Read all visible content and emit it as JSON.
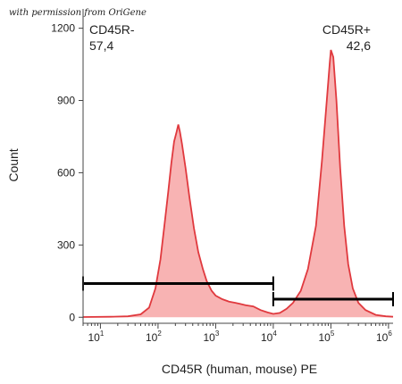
{
  "watermark": "with permission from OriGene",
  "chart_data": {
    "type": "area",
    "xlabel": "CD45R (human, mouse) PE",
    "ylabel": "Count",
    "x_scale": "log",
    "xlim": [
      5,
      1200000
    ],
    "ylim": [
      -25,
      1280
    ],
    "y_ticks": [
      0,
      300,
      600,
      900,
      1200
    ],
    "y_tick_labels": [
      "0",
      "300",
      "600",
      "900",
      "1200"
    ],
    "x_ticks": [
      {
        "value": 10,
        "base": "10",
        "exp": "1"
      },
      {
        "value": 100,
        "base": "10",
        "exp": "2"
      },
      {
        "value": 1000,
        "base": "10",
        "exp": "3"
      },
      {
        "value": 10000,
        "base": "10",
        "exp": "4"
      },
      {
        "value": 100000,
        "base": "10",
        "exp": "5"
      },
      {
        "value": 1000000,
        "base": "10",
        "exp": "6"
      }
    ],
    "fill_color": "#f8b3b3",
    "line_color": "#e0393e",
    "gate_color": "#000000",
    "histogram": [
      [
        5,
        1
      ],
      [
        15,
        2
      ],
      [
        30,
        4
      ],
      [
        50,
        12
      ],
      [
        70,
        40
      ],
      [
        90,
        120
      ],
      [
        110,
        240
      ],
      [
        130,
        390
      ],
      [
        150,
        520
      ],
      [
        170,
        640
      ],
      [
        190,
        730
      ],
      [
        210,
        770
      ],
      [
        225,
        800
      ],
      [
        240,
        770
      ],
      [
        260,
        720
      ],
      [
        300,
        620
      ],
      [
        350,
        500
      ],
      [
        420,
        370
      ],
      [
        500,
        270
      ],
      [
        600,
        200
      ],
      [
        700,
        150
      ],
      [
        850,
        110
      ],
      [
        1000,
        90
      ],
      [
        1300,
        75
      ],
      [
        1700,
        65
      ],
      [
        2200,
        60
      ],
      [
        2700,
        55
      ],
      [
        3300,
        50
      ],
      [
        4500,
        45
      ],
      [
        6000,
        30
      ],
      [
        8000,
        20
      ],
      [
        10000,
        14
      ],
      [
        13000,
        18
      ],
      [
        17000,
        35
      ],
      [
        22000,
        60
      ],
      [
        30000,
        110
      ],
      [
        40000,
        200
      ],
      [
        55000,
        380
      ],
      [
        70000,
        650
      ],
      [
        85000,
        900
      ],
      [
        95000,
        1050
      ],
      [
        100000,
        1110
      ],
      [
        110000,
        1080
      ],
      [
        125000,
        900
      ],
      [
        145000,
        620
      ],
      [
        170000,
        380
      ],
      [
        200000,
        220
      ],
      [
        240000,
        120
      ],
      [
        300000,
        60
      ],
      [
        400000,
        30
      ],
      [
        600000,
        10
      ],
      [
        900000,
        4
      ],
      [
        1200000,
        2
      ]
    ],
    "gates": [
      {
        "name": "CD45R-",
        "value": "57,4",
        "x_start": 5,
        "x_end": 10000,
        "y": 140
      },
      {
        "name": "CD45R+",
        "value": "42,6",
        "x_start": 10000,
        "x_end": 1200000,
        "y": 75
      }
    ]
  }
}
